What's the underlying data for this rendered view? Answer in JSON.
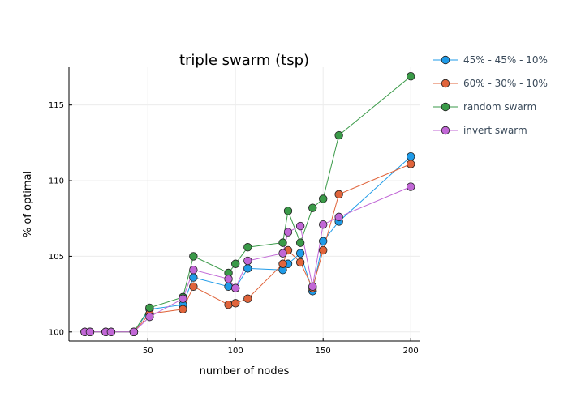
{
  "chart_data": {
    "type": "line",
    "title": "triple swarm (tsp)",
    "xlabel": "number of nodes",
    "ylabel": "% of optimal",
    "xlim": [
      5,
      205
    ],
    "ylim": [
      99.4,
      117.5
    ],
    "xticks": [
      50,
      100,
      150,
      200
    ],
    "yticks": [
      100,
      105,
      110,
      115
    ],
    "grid": true,
    "legend_position": "right",
    "x": [
      14,
      17,
      26,
      29,
      42,
      51,
      70,
      76,
      96,
      100,
      107,
      127,
      130,
      137,
      144,
      150,
      159,
      200
    ],
    "series": [
      {
        "name": "45% - 45% - 10%",
        "color": "#1f9be8",
        "values": [
          100,
          100,
          100,
          100,
          100,
          101.5,
          101.8,
          103.6,
          103.0,
          102.9,
          104.2,
          104.1,
          104.5,
          105.2,
          102.7,
          106.0,
          107.3,
          111.6
        ]
      },
      {
        "name": "60% - 30% - 10%",
        "color": "#e0643b",
        "values": [
          100,
          100,
          100,
          100,
          100,
          101.2,
          101.5,
          103.0,
          101.8,
          101.9,
          102.2,
          104.5,
          105.4,
          104.6,
          102.9,
          105.4,
          109.1,
          111.1
        ]
      },
      {
        "name": "random swarm",
        "color": "#3a9a48",
        "values": [
          100,
          100,
          100,
          100,
          100,
          101.6,
          102.3,
          105.0,
          103.9,
          104.5,
          105.6,
          105.9,
          108.0,
          105.9,
          108.2,
          108.8,
          113.0,
          116.9
        ]
      },
      {
        "name": "invert swarm",
        "color": "#c167d6",
        "values": [
          100,
          100,
          100,
          100,
          100,
          101.0,
          102.2,
          104.1,
          103.5,
          102.9,
          104.7,
          105.2,
          106.6,
          107.0,
          103.0,
          107.1,
          107.6,
          109.6
        ]
      }
    ]
  }
}
